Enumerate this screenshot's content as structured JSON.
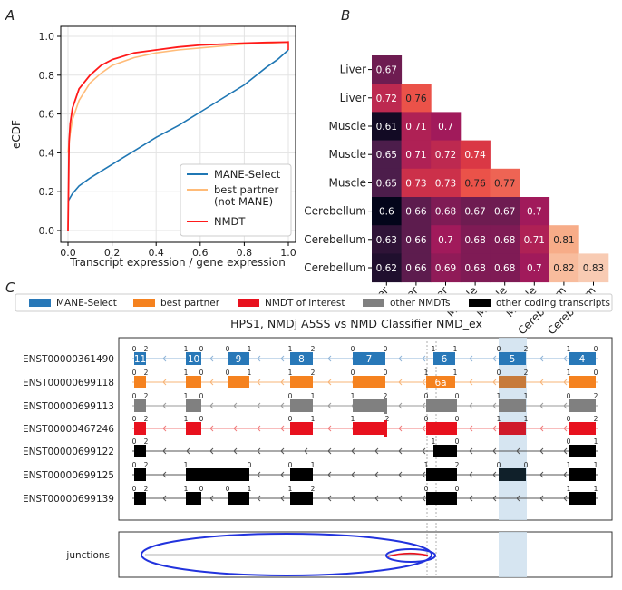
{
  "panel_labels": {
    "a": "A",
    "b": "B",
    "c": "C"
  },
  "chart_data": [
    {
      "type": "line",
      "panel": "A",
      "xlabel": "Transcript expression / gene expression",
      "ylabel": "eCDF",
      "xlim": [
        0,
        1
      ],
      "ylim": [
        0,
        1
      ],
      "x_ticks": [
        "0.0",
        "0.2",
        "0.4",
        "0.6",
        "0.8",
        "1.0"
      ],
      "y_ticks": [
        "0.0",
        "0.2",
        "0.4",
        "0.6",
        "0.8",
        "1.0"
      ],
      "grid": true,
      "legend_position": "lower-right",
      "series": [
        {
          "name": "MANE-Select",
          "color": "#1f77b4",
          "x": [
            0,
            0.02,
            0.05,
            0.1,
            0.2,
            0.3,
            0.4,
            0.5,
            0.6,
            0.7,
            0.8,
            0.9,
            0.95,
            1.0
          ],
          "y": [
            0.15,
            0.19,
            0.23,
            0.27,
            0.34,
            0.41,
            0.48,
            0.54,
            0.61,
            0.68,
            0.75,
            0.84,
            0.88,
            0.93
          ]
        },
        {
          "name": "best partner\n(not MANE)",
          "color": "#ffbb78",
          "x": [
            0,
            0.01,
            0.02,
            0.05,
            0.1,
            0.15,
            0.2,
            0.3,
            0.4,
            0.5,
            0.6,
            0.7,
            0.8,
            0.9,
            1.0
          ],
          "y": [
            0.4,
            0.5,
            0.57,
            0.67,
            0.76,
            0.81,
            0.85,
            0.89,
            0.915,
            0.93,
            0.94,
            0.95,
            0.96,
            0.965,
            0.97
          ]
        },
        {
          "name": "NMDT",
          "color": "#ff1a1a",
          "x": [
            0,
            0.005,
            0.01,
            0.02,
            0.05,
            0.1,
            0.15,
            0.2,
            0.3,
            0.4,
            0.5,
            0.6,
            0.7,
            0.8,
            0.9,
            1.0
          ],
          "y": [
            0.0,
            0.46,
            0.55,
            0.63,
            0.73,
            0.8,
            0.85,
            0.88,
            0.915,
            0.93,
            0.945,
            0.955,
            0.96,
            0.965,
            0.968,
            0.97
          ]
        }
      ]
    },
    {
      "type": "heatmap",
      "panel": "B",
      "row_labels": [
        "Liver",
        "Liver",
        "Muscle",
        "Muscle",
        "Muscle",
        "Cerebellum",
        "Cerebellum",
        "Cerebellum"
      ],
      "col_labels": [
        "Liver",
        "Liver",
        "Liver",
        "Muscle",
        "Muscle",
        "Muscle",
        "Cerebellum",
        "Cerebellum"
      ],
      "values": [
        [
          "0.67"
        ],
        [
          "0.72",
          "0.76"
        ],
        [
          "0.61",
          "0.71",
          "0.7"
        ],
        [
          "0.65",
          "0.71",
          "0.72",
          "0.74"
        ],
        [
          "0.65",
          "0.73",
          "0.73",
          "0.76",
          "0.77"
        ],
        [
          "0.6",
          "0.66",
          "0.68",
          "0.67",
          "0.67",
          "0.7"
        ],
        [
          "0.63",
          "0.66",
          "0.7",
          "0.68",
          "0.68",
          "0.71",
          "0.81"
        ],
        [
          "0.62",
          "0.66",
          "0.69",
          "0.68",
          "0.68",
          "0.7",
          "0.82",
          "0.83"
        ]
      ],
      "colorscale": [
        "#03051a",
        "#4c1d4b",
        "#a11a5b",
        "#e83f3f",
        "#f69c73",
        "#faebdd"
      ],
      "vmin": 0.6,
      "vmax": 0.85
    },
    {
      "type": "gene_structure",
      "panel": "C",
      "title": "HPS1, NMDj A5SS vs NMD Classifier NMD_ex",
      "legend": [
        {
          "label": "MANE-Select",
          "color": "#2878b8"
        },
        {
          "label": "best partner",
          "color": "#f5821f"
        },
        {
          "label": "NMDT of interest",
          "color": "#e8111e"
        },
        {
          "label": "other NMDTs",
          "color": "#808080"
        },
        {
          "label": "other coding transcripts",
          "color": "#000000"
        }
      ],
      "transcripts": [
        {
          "id": "ENST00000361490",
          "kind": "mane"
        },
        {
          "id": "ENST00000699118",
          "kind": "best"
        },
        {
          "id": "ENST00000699113",
          "kind": "other_nmd"
        },
        {
          "id": "ENST00000467246",
          "kind": "nmdt"
        },
        {
          "id": "ENST00000699122",
          "kind": "coding"
        },
        {
          "id": "ENST00000699125",
          "kind": "coding"
        },
        {
          "id": "ENST00000699139",
          "kind": "coding"
        }
      ],
      "exon_labels": [
        "11",
        "10",
        "9",
        "8",
        "7",
        "6",
        "5",
        "4"
      ],
      "exon_label_6a": "6a",
      "phase_labels": [
        "0",
        "1",
        "2"
      ],
      "junctions_label": "junctions"
    }
  ]
}
